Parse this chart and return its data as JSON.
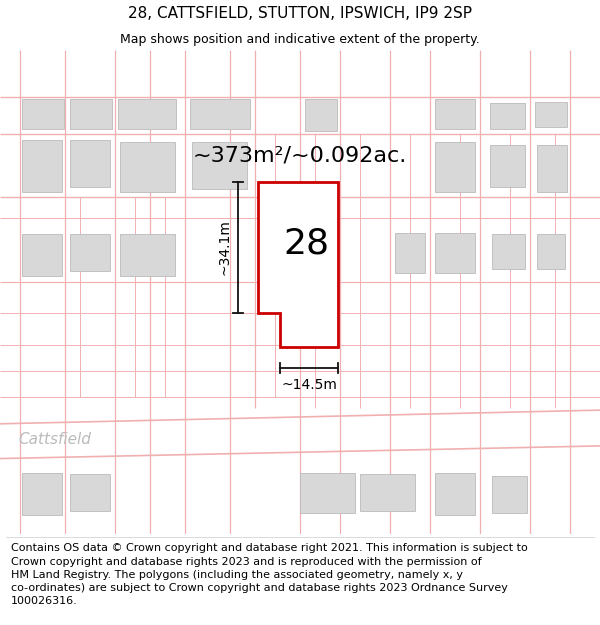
{
  "title": "28, CATTSFIELD, STUTTON, IPSWICH, IP9 2SP",
  "subtitle": "Map shows position and indicative extent of the property.",
  "footer_line1": "Contains OS data © Crown copyright and database right 2021. This information is subject to",
  "footer_line2": "Crown copyright and database rights 2023 and is reproduced with the permission of",
  "footer_line3": "HM Land Registry. The polygons (including the associated geometry, namely x, y",
  "footer_line4": "co-ordinates) are subject to Crown copyright and database rights 2023 Ordnance Survey",
  "footer_line5": "100026316.",
  "area_label": "~373m²/~0.092ac.",
  "width_label": "~14.5m",
  "height_label": "~34.1m",
  "street_label": "Cattsfield",
  "plot_number": "28",
  "bg_color": "#ffffff",
  "map_bg": "#ffffff",
  "plot_outline_color": "#cc0000",
  "building_fill": "#d8d8d8",
  "building_edge": "#bbbbbb",
  "road_color": "#f0b0b0",
  "dim_color": "#111111",
  "street_color": "#bbbbbb",
  "title_fontsize": 11,
  "subtitle_fontsize": 9,
  "footer_fontsize": 8,
  "area_fontsize": 16,
  "plot_num_fontsize": 26,
  "dim_fontsize": 10,
  "street_fontsize": 11
}
